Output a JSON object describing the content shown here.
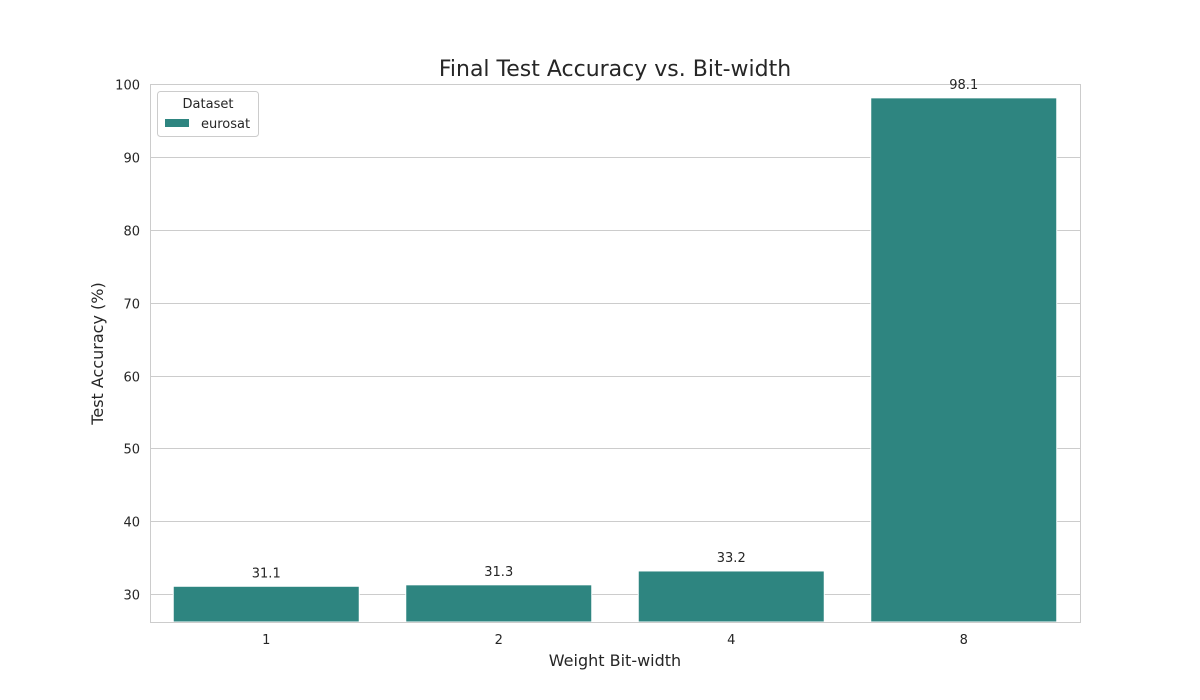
{
  "chart_data": {
    "type": "bar",
    "title": "Final Test Accuracy vs. Bit-width",
    "xlabel": "Weight Bit-width",
    "ylabel": "Test Accuracy (%)",
    "categories": [
      "1",
      "2",
      "4",
      "8"
    ],
    "series": [
      {
        "name": "eurosat",
        "values": [
          31.1,
          31.3,
          33.2,
          98.1
        ],
        "data_labels": [
          "31.1",
          "31.3",
          "33.2",
          "98.1"
        ],
        "color": "#2e8580"
      }
    ],
    "ylim": [
      26.2,
      100
    ],
    "yticks": [
      "30",
      "40",
      "50",
      "60",
      "70",
      "80",
      "90",
      "100"
    ],
    "grid": true,
    "legend": {
      "title": "Dataset",
      "placement": "upper-left"
    }
  }
}
